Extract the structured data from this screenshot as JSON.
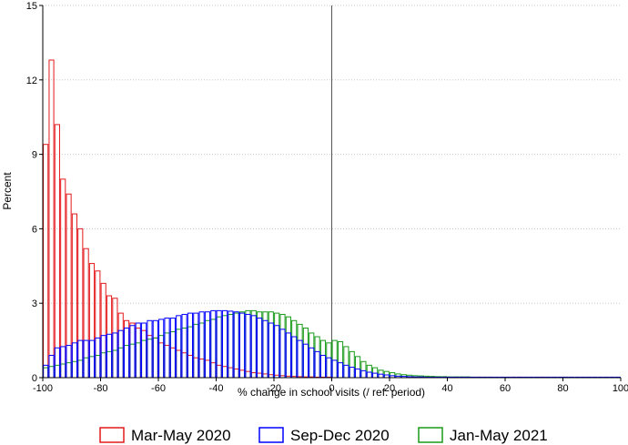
{
  "chart_data": {
    "type": "bar",
    "title": "",
    "xlabel": "% change in school visits (/ ref. period)",
    "ylabel": "Percent",
    "xlim": [
      -100,
      100
    ],
    "ylim": [
      0,
      15
    ],
    "xticks": [
      -100,
      -80,
      -60,
      -40,
      -20,
      0,
      20,
      40,
      60,
      80,
      100
    ],
    "yticks": [
      0,
      3,
      6,
      9,
      12,
      15
    ],
    "bin_width": 2,
    "reference_line_x": 0,
    "grid": "horizontal dotted",
    "legend_position": "bottom",
    "series": [
      {
        "name": "Mar-May 2020",
        "color": "#e41a1c",
        "bins": [
          [
            -99,
            9.4
          ],
          [
            -97,
            12.8
          ],
          [
            -95,
            10.2
          ],
          [
            -93,
            8.0
          ],
          [
            -91,
            7.4
          ],
          [
            -89,
            6.6
          ],
          [
            -87,
            6.0
          ],
          [
            -85,
            5.2
          ],
          [
            -83,
            4.6
          ],
          [
            -81,
            4.3
          ],
          [
            -79,
            3.8
          ],
          [
            -77,
            3.3
          ],
          [
            -75,
            3.2
          ],
          [
            -73,
            2.6
          ],
          [
            -71,
            2.3
          ],
          [
            -69,
            2.2
          ],
          [
            -67,
            2.0
          ],
          [
            -65,
            1.9
          ],
          [
            -63,
            1.7
          ],
          [
            -61,
            1.6
          ],
          [
            -59,
            1.4
          ],
          [
            -57,
            1.3
          ],
          [
            -55,
            1.2
          ],
          [
            -53,
            1.1
          ],
          [
            -51,
            1.0
          ],
          [
            -49,
            0.9
          ],
          [
            -47,
            0.8
          ],
          [
            -45,
            0.75
          ],
          [
            -43,
            0.7
          ],
          [
            -41,
            0.6
          ],
          [
            -39,
            0.5
          ],
          [
            -37,
            0.45
          ],
          [
            -35,
            0.4
          ],
          [
            -33,
            0.35
          ],
          [
            -31,
            0.3
          ],
          [
            -29,
            0.25
          ],
          [
            -27,
            0.2
          ],
          [
            -25,
            0.18
          ],
          [
            -23,
            0.15
          ],
          [
            -21,
            0.12
          ],
          [
            -19,
            0.1
          ],
          [
            -17,
            0.08
          ],
          [
            -15,
            0.06
          ],
          [
            -13,
            0.05
          ],
          [
            -11,
            0.04
          ],
          [
            -9,
            0.03
          ],
          [
            -7,
            0.03
          ],
          [
            -5,
            0.02
          ],
          [
            -3,
            0.02
          ],
          [
            -1,
            0.02
          ],
          [
            51,
            0.02
          ],
          [
            63,
            0.02
          ],
          [
            65,
            0.02
          ],
          [
            73,
            0.02
          ],
          [
            81,
            0.02
          ]
        ]
      },
      {
        "name": "Sep-Dec 2020",
        "color": "#0000ff",
        "bins": [
          [
            -99,
            0.5
          ],
          [
            -97,
            0.9
          ],
          [
            -95,
            1.2
          ],
          [
            -93,
            1.25
          ],
          [
            -91,
            1.3
          ],
          [
            -89,
            1.4
          ],
          [
            -87,
            1.5
          ],
          [
            -85,
            1.5
          ],
          [
            -83,
            1.5
          ],
          [
            -81,
            1.6
          ],
          [
            -79,
            1.7
          ],
          [
            -77,
            1.75
          ],
          [
            -75,
            1.8
          ],
          [
            -73,
            1.9
          ],
          [
            -71,
            2.0
          ],
          [
            -69,
            2.1
          ],
          [
            -67,
            2.2
          ],
          [
            -65,
            2.2
          ],
          [
            -63,
            2.3
          ],
          [
            -61,
            2.3
          ],
          [
            -59,
            2.35
          ],
          [
            -57,
            2.4
          ],
          [
            -55,
            2.4
          ],
          [
            -53,
            2.5
          ],
          [
            -51,
            2.55
          ],
          [
            -49,
            2.6
          ],
          [
            -47,
            2.6
          ],
          [
            -45,
            2.65
          ],
          [
            -43,
            2.65
          ],
          [
            -41,
            2.7
          ],
          [
            -39,
            2.7
          ],
          [
            -37,
            2.7
          ],
          [
            -35,
            2.68
          ],
          [
            -33,
            2.65
          ],
          [
            -31,
            2.6
          ],
          [
            -29,
            2.55
          ],
          [
            -27,
            2.5
          ],
          [
            -25,
            2.4
          ],
          [
            -23,
            2.3
          ],
          [
            -21,
            2.2
          ],
          [
            -19,
            2.1
          ],
          [
            -17,
            1.95
          ],
          [
            -15,
            1.8
          ],
          [
            -13,
            1.65
          ],
          [
            -11,
            1.5
          ],
          [
            -9,
            1.35
          ],
          [
            -7,
            1.2
          ],
          [
            -5,
            1.05
          ],
          [
            -3,
            0.9
          ],
          [
            -1,
            0.8
          ],
          [
            1,
            0.7
          ],
          [
            3,
            0.6
          ],
          [
            5,
            0.5
          ],
          [
            7,
            0.42
          ],
          [
            9,
            0.35
          ],
          [
            11,
            0.28
          ],
          [
            13,
            0.22
          ],
          [
            15,
            0.18
          ],
          [
            17,
            0.14
          ],
          [
            19,
            0.11
          ],
          [
            21,
            0.08
          ],
          [
            23,
            0.06
          ],
          [
            25,
            0.05
          ],
          [
            27,
            0.04
          ],
          [
            29,
            0.03
          ],
          [
            31,
            0.03
          ],
          [
            33,
            0.02
          ],
          [
            35,
            0.02
          ],
          [
            37,
            0.02
          ],
          [
            39,
            0.02
          ],
          [
            41,
            0.02
          ],
          [
            43,
            0.02
          ],
          [
            45,
            0.02
          ],
          [
            47,
            0.02
          ],
          [
            49,
            0.02
          ],
          [
            51,
            0.02
          ],
          [
            53,
            0.02
          ],
          [
            55,
            0.02
          ],
          [
            57,
            0.02
          ],
          [
            59,
            0.02
          ],
          [
            61,
            0.02
          ],
          [
            63,
            0.02
          ],
          [
            65,
            0.02
          ],
          [
            67,
            0.02
          ],
          [
            69,
            0.02
          ],
          [
            71,
            0.02
          ],
          [
            73,
            0.02
          ],
          [
            75,
            0.02
          ],
          [
            77,
            0.02
          ],
          [
            79,
            0.02
          ],
          [
            81,
            0.02
          ],
          [
            83,
            0.02
          ],
          [
            85,
            0.02
          ],
          [
            87,
            0.02
          ],
          [
            89,
            0.02
          ],
          [
            91,
            0.02
          ],
          [
            93,
            0.02
          ],
          [
            95,
            0.02
          ],
          [
            97,
            0.02
          ],
          [
            99,
            0.02
          ]
        ]
      },
      {
        "name": "Jan-May 2021",
        "color": "#1a9a1a",
        "bins": [
          [
            -99,
            0.4
          ],
          [
            -97,
            0.45
          ],
          [
            -95,
            0.5
          ],
          [
            -93,
            0.55
          ],
          [
            -91,
            0.6
          ],
          [
            -89,
            0.65
          ],
          [
            -87,
            0.7
          ],
          [
            -85,
            0.8
          ],
          [
            -83,
            0.85
          ],
          [
            -81,
            0.9
          ],
          [
            -79,
            1.0
          ],
          [
            -77,
            1.05
          ],
          [
            -75,
            1.1
          ],
          [
            -73,
            1.2
          ],
          [
            -71,
            1.3
          ],
          [
            -69,
            1.35
          ],
          [
            -67,
            1.4
          ],
          [
            -65,
            1.5
          ],
          [
            -63,
            1.55
          ],
          [
            -61,
            1.6
          ],
          [
            -59,
            1.7
          ],
          [
            -57,
            1.8
          ],
          [
            -55,
            1.85
          ],
          [
            -53,
            1.95
          ],
          [
            -51,
            2.0
          ],
          [
            -49,
            2.05
          ],
          [
            -47,
            2.15
          ],
          [
            -45,
            2.2
          ],
          [
            -43,
            2.3
          ],
          [
            -41,
            2.35
          ],
          [
            -39,
            2.45
          ],
          [
            -37,
            2.5
          ],
          [
            -35,
            2.55
          ],
          [
            -33,
            2.6
          ],
          [
            -31,
            2.65
          ],
          [
            -29,
            2.7
          ],
          [
            -27,
            2.7
          ],
          [
            -25,
            2.65
          ],
          [
            -23,
            2.65
          ],
          [
            -21,
            2.65
          ],
          [
            -19,
            2.6
          ],
          [
            -17,
            2.55
          ],
          [
            -15,
            2.45
          ],
          [
            -13,
            2.3
          ],
          [
            -11,
            2.15
          ],
          [
            -9,
            2.0
          ],
          [
            -7,
            1.8
          ],
          [
            -5,
            1.65
          ],
          [
            -3,
            1.5
          ],
          [
            -1,
            1.4
          ],
          [
            1,
            1.5
          ],
          [
            3,
            1.45
          ],
          [
            5,
            1.25
          ],
          [
            7,
            1.05
          ],
          [
            9,
            0.85
          ],
          [
            11,
            0.65
          ],
          [
            13,
            0.5
          ],
          [
            15,
            0.4
          ],
          [
            17,
            0.3
          ],
          [
            19,
            0.25
          ],
          [
            21,
            0.2
          ],
          [
            23,
            0.15
          ],
          [
            25,
            0.12
          ],
          [
            27,
            0.1
          ],
          [
            29,
            0.08
          ],
          [
            31,
            0.07
          ],
          [
            33,
            0.06
          ],
          [
            35,
            0.05
          ],
          [
            37,
            0.04
          ],
          [
            39,
            0.04
          ],
          [
            41,
            0.03
          ],
          [
            43,
            0.03
          ],
          [
            45,
            0.03
          ],
          [
            47,
            0.03
          ],
          [
            49,
            0.02
          ],
          [
            51,
            0.02
          ],
          [
            53,
            0.02
          ],
          [
            55,
            0.02
          ]
        ]
      }
    ]
  }
}
